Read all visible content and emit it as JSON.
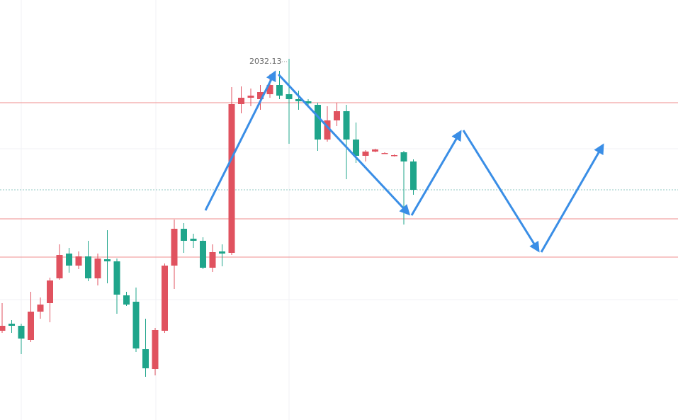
{
  "chart_data": {
    "type": "candlestick",
    "open": [
      1936.13,
      1938.63,
      1937.88,
      1932.88,
      1942.88,
      1945.88,
      1954.63,
      1963.38,
      1959.13,
      1962.38,
      1954.63,
      1961.38,
      1960.63,
      1948.63,
      1946.38,
      1929.63,
      1922.63,
      1936.13,
      1959.13,
      1972.13,
      1968.63,
      1967.88,
      1958.38,
      1964.13,
      1963.63,
      2016.13,
      2018.38,
      2017.88,
      2019.63,
      2022.88,
      2019.63,
      2017.88,
      2017.13,
      2015.88,
      2003.63,
      2010.38,
      2013.63,
      2003.63,
      1997.88,
      1999.38,
      1998.63,
      1997.88,
      1999.13,
      1995.88
    ],
    "high": [
      1945.88,
      1939.88,
      1938.63,
      1949.88,
      1947.88,
      1954.88,
      1966.63,
      1965.38,
      1964.13,
      1967.88,
      1963.38,
      1971.63,
      1961.63,
      1949.88,
      1951.38,
      1940.38,
      1937.13,
      1959.88,
      1975.38,
      1974.13,
      1970.38,
      1969.13,
      1966.63,
      1966.63,
      2022.13,
      2022.38,
      2021.63,
      2022.88,
      2026.63,
      2027.88,
      2032.13,
      2020.88,
      2017.88,
      2016.63,
      2015.38,
      2016.63,
      2015.88,
      2009.63,
      1999.88,
      2000.38,
      1999.13,
      1998.38,
      1999.63,
      1996.63
    ],
    "low": [
      1935.38,
      1935.38,
      1927.88,
      1932.13,
      1940.38,
      1939.13,
      1954.13,
      1956.63,
      1957.88,
      1953.63,
      1952.13,
      1952.88,
      1942.13,
      1944.88,
      1928.63,
      1919.88,
      1920.38,
      1935.38,
      1950.88,
      1963.63,
      1965.38,
      1957.88,
      1956.88,
      1958.88,
      1962.88,
      2012.88,
      2015.38,
      2014.13,
      2018.38,
      2017.88,
      2002.13,
      2014.13,
      2015.38,
      1999.63,
      2002.88,
      2008.38,
      1989.63,
      1995.38,
      1995.88,
      1999.13,
      1998.63,
      1997.63,
      1973.63,
      1984.13
    ],
    "close": [
      1937.88,
      1937.88,
      1933.38,
      1942.88,
      1945.38,
      1953.88,
      1962.88,
      1959.13,
      1962.38,
      1954.63,
      1961.63,
      1960.63,
      1948.88,
      1945.38,
      1929.88,
      1922.88,
      1936.38,
      1959.13,
      1972.13,
      1967.88,
      1967.88,
      1958.38,
      1963.88,
      1963.38,
      2016.13,
      2018.38,
      2019.13,
      2020.38,
      2022.88,
      2019.13,
      2017.88,
      2017.13,
      2016.38,
      2003.63,
      2010.38,
      2013.63,
      2003.63,
      1997.88,
      1999.38,
      2000.13,
      1998.88,
      1998.13,
      1995.88,
      1985.88
    ],
    "up_color": "#e0525f",
    "down_color": "#1fa58b",
    "levels": [
      2016.63,
      1975.63,
      1962.13
    ],
    "level_color": "#f2a3a3",
    "last_price": 1985.88,
    "last_price_color": "#8fc7c0",
    "ylim": [
      1904.63,
      2052.88
    ]
  }
}
